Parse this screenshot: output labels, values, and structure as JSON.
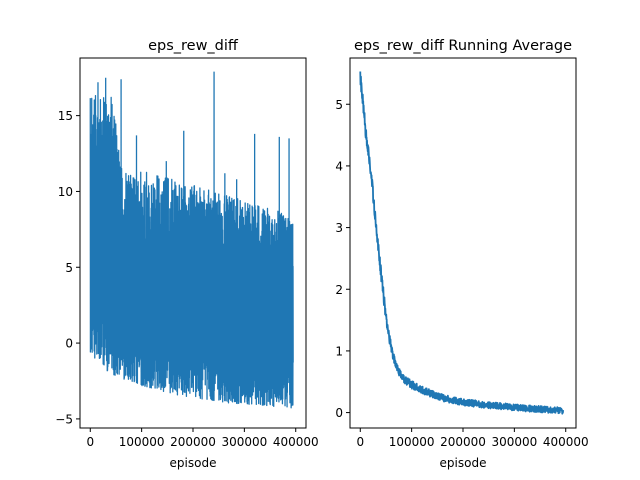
{
  "chart_data": [
    {
      "type": "line",
      "title": "eps_rew_diff",
      "xlabel": "episode",
      "ylabel": "",
      "xlim": [
        -20000,
        420000
      ],
      "ylim": [
        -5.6,
        18.8
      ],
      "xticks": [
        0,
        100000,
        200000,
        300000,
        400000
      ],
      "xtick_labels": [
        "0",
        "100000",
        "200000",
        "300000",
        "400000"
      ],
      "yticks": [
        -5,
        0,
        5,
        10,
        15
      ],
      "ytick_labels": [
        "−5",
        "0",
        "5",
        "10",
        "15"
      ],
      "color": "#1f77b4",
      "grid": false,
      "series": [
        {
          "x": [
            0,
            20000,
            40000,
            60000,
            80000,
            100000,
            120000,
            140000,
            160000,
            180000,
            200000,
            220000,
            240000,
            260000,
            280000,
            300000,
            320000,
            340000,
            360000,
            380000,
            395000
          ],
          "upper": [
            16.2,
            16.5,
            16.8,
            12.0,
            11.5,
            11.3,
            11.2,
            11.0,
            10.8,
            10.6,
            10.4,
            10.2,
            10.0,
            9.8,
            9.6,
            9.4,
            9.2,
            9.0,
            8.8,
            8.6,
            7.8
          ],
          "lower": [
            -0.6,
            -1.5,
            -2.0,
            -2.3,
            -2.6,
            -2.8,
            -3.0,
            -3.2,
            -3.4,
            -3.5,
            -3.6,
            -3.7,
            -3.8,
            -3.9,
            -4.0,
            -4.0,
            -4.1,
            -4.1,
            -4.2,
            -4.2,
            -4.3
          ]
        }
      ],
      "spikes": [
        {
          "x": 15000,
          "y": 17.2
        },
        {
          "x": 30000,
          "y": 17.5
        },
        {
          "x": 52000,
          "y": 12.8
        },
        {
          "x": 60000,
          "y": 17.4
        },
        {
          "x": 90000,
          "y": 13.7
        },
        {
          "x": 148000,
          "y": 12.0
        },
        {
          "x": 182000,
          "y": 14.0
        },
        {
          "x": 241000,
          "y": 17.9
        },
        {
          "x": 262000,
          "y": 11.2
        },
        {
          "x": 285000,
          "y": 10.8
        },
        {
          "x": 320000,
          "y": 13.8
        },
        {
          "x": 368000,
          "y": 13.6
        },
        {
          "x": 387000,
          "y": 13.5
        }
      ]
    },
    {
      "type": "line",
      "title": "eps_rew_diff Running Average",
      "xlabel": "episode",
      "ylabel": "",
      "xlim": [
        -20000,
        420000
      ],
      "ylim": [
        -0.25,
        5.75
      ],
      "xticks": [
        0,
        100000,
        200000,
        300000,
        400000
      ],
      "xtick_labels": [
        "0",
        "100000",
        "200000",
        "300000",
        "400000"
      ],
      "yticks": [
        0,
        1,
        2,
        3,
        4,
        5
      ],
      "ytick_labels": [
        "0",
        "1",
        "2",
        "3",
        "4",
        "5"
      ],
      "color": "#1f77b4",
      "grid": false,
      "series": [
        {
          "x": [
            0,
            5000,
            10000,
            20000,
            30000,
            40000,
            50000,
            60000,
            70000,
            80000,
            100000,
            120000,
            140000,
            160000,
            180000,
            200000,
            240000,
            280000,
            320000,
            360000,
            395000
          ],
          "y": [
            5.45,
            5.05,
            4.6,
            3.95,
            3.1,
            2.3,
            1.55,
            1.05,
            0.75,
            0.58,
            0.45,
            0.37,
            0.3,
            0.24,
            0.2,
            0.17,
            0.13,
            0.1,
            0.07,
            0.05,
            0.03
          ]
        }
      ]
    }
  ]
}
